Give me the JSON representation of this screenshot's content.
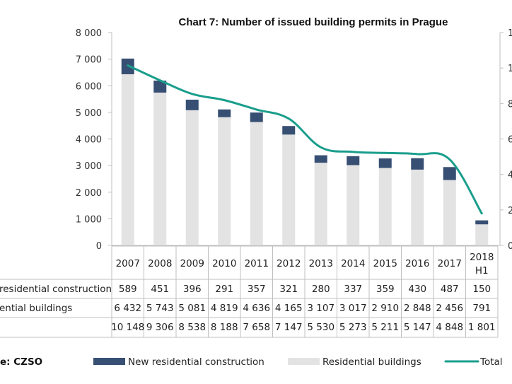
{
  "chart_data": {
    "type": "bar",
    "stacked": true,
    "title": "Chart 7: Number of issued building permits in Prague",
    "categories": [
      "2007",
      "2008",
      "2009",
      "2010",
      "2011",
      "2012",
      "2013",
      "2014",
      "2015",
      "2016",
      "2017",
      "2018 H1"
    ],
    "category_lines": [
      [
        "2007"
      ],
      [
        "2008"
      ],
      [
        "2009"
      ],
      [
        "2010"
      ],
      [
        "2011"
      ],
      [
        "2012"
      ],
      [
        "2013"
      ],
      [
        "2014"
      ],
      [
        "2015"
      ],
      [
        "2016"
      ],
      [
        "2017"
      ],
      [
        "2018",
        "H1"
      ]
    ],
    "series": [
      {
        "name": "Residential buildings",
        "table_label": "ential buildings",
        "type": "bar",
        "axis": "left",
        "color": "#e3e3e3",
        "values": [
          6432,
          5743,
          5081,
          4819,
          4636,
          4165,
          3107,
          3017,
          2910,
          2848,
          2456,
          791
        ],
        "display_values": [
          "6 432",
          "5 743",
          "5 081",
          "4 819",
          "4 636",
          "4 165",
          "3 107",
          "3 017",
          "2 910",
          "2 848",
          "2 456",
          "791"
        ]
      },
      {
        "name": "New residential construction",
        "table_label": "residential construction",
        "type": "bar",
        "axis": "left",
        "color": "#374f73",
        "values": [
          589,
          451,
          396,
          291,
          357,
          321,
          280,
          337,
          359,
          430,
          487,
          150
        ],
        "display_values": [
          "589",
          "451",
          "396",
          "291",
          "357",
          "321",
          "280",
          "337",
          "359",
          "430",
          "487",
          "150"
        ]
      },
      {
        "name": "Total",
        "table_label": "",
        "type": "line",
        "axis": "right",
        "color": "#1a9e8c",
        "values": [
          10148,
          9306,
          8538,
          8188,
          7658,
          7147,
          5530,
          5273,
          5211,
          5147,
          4848,
          1801
        ],
        "display_values": [
          "10 148",
          "9 306",
          "8 538",
          "8 188",
          "7 658",
          "7 147",
          "5 530",
          "5 273",
          "5 211",
          "5 147",
          "4 848",
          "1 801"
        ]
      }
    ],
    "table_row_order": [
      "New residential construction",
      "Residential buildings",
      "Total"
    ],
    "left_axis": {
      "ylim": [
        0,
        8000
      ],
      "ticks": [
        "0",
        "1 000",
        "2 000",
        "3 000",
        "4 000",
        "5 000",
        "6 000",
        "7 000",
        "8 000"
      ]
    },
    "right_axis": {
      "ylim": [
        0,
        12000
      ],
      "ticks_visible": [
        "0",
        "2",
        "4",
        "6",
        "8",
        "1",
        "1"
      ]
    },
    "xlabel": "",
    "ylabel": "",
    "grid": false,
    "legend": {
      "position": "bottom",
      "entries": [
        "New residential construction",
        "Residential buildings",
        "Total"
      ]
    },
    "source": "e: CZSO"
  }
}
